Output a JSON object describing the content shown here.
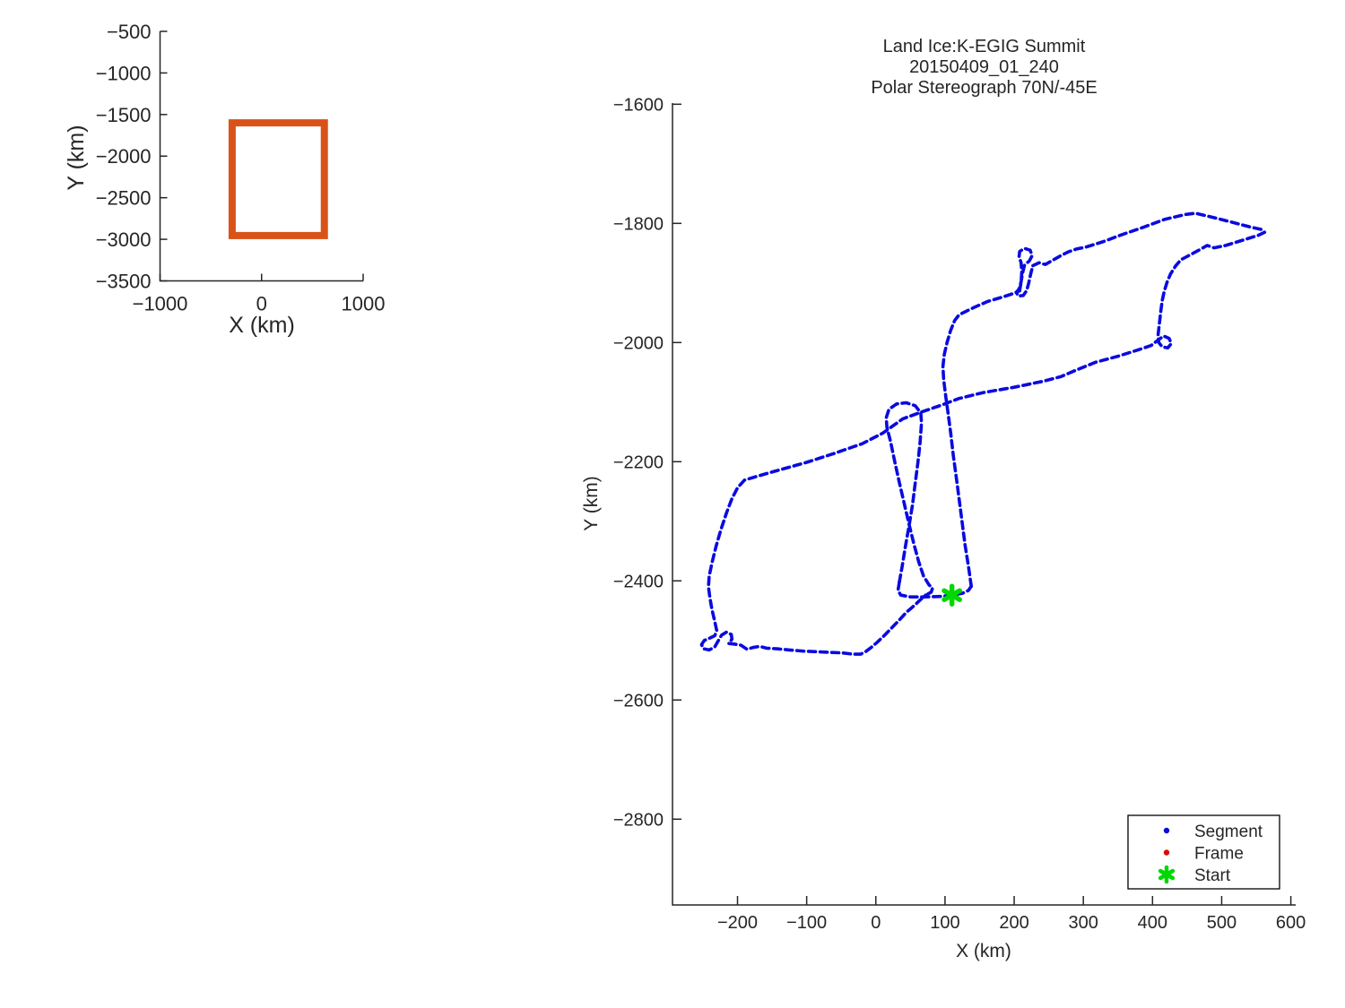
{
  "figure": {
    "background": "#ffffff"
  },
  "colors": {
    "track_blue": "#0a0ae0",
    "frame_red": "#e80000",
    "start_green": "#00d800",
    "coverage_orange": "#d95319",
    "axis": "#262626",
    "text": "#262626"
  },
  "legend": {
    "items": [
      {
        "label": "Segment",
        "marker": "dot",
        "color": "#0a0ae0"
      },
      {
        "label": "Frame",
        "marker": "dot",
        "color": "#e80000"
      },
      {
        "label": "Start",
        "marker": "asterisk",
        "color": "#00d800"
      }
    ]
  },
  "chart_data": [
    {
      "id": "inset_plot",
      "type": "line",
      "title": "",
      "xlabel": "X (km)",
      "ylabel": "Y (km)",
      "xlim": [
        -1000,
        1000
      ],
      "ylim": [
        -3500,
        -500
      ],
      "x_ticks": [
        -1000,
        0,
        1000
      ],
      "y_ticks": [
        -500,
        -1000,
        -1500,
        -2000,
        -2500,
        -3000,
        -3500
      ],
      "grid": false,
      "coverage_box": {
        "x": [
          -290,
          618
        ],
        "y": [
          -2955,
          -1600
        ]
      }
    },
    {
      "id": "main_plot",
      "type": "line",
      "title_lines": [
        "Land Ice:K-EGIG Summit",
        "20150409_01_240",
        "Polar Stereograph 70N/-45E"
      ],
      "xlabel": "X (km)",
      "ylabel": "Y (km)",
      "xlim": [
        -294,
        607
      ],
      "ylim": [
        -2944,
        -1598
      ],
      "x_ticks": [
        -200,
        -100,
        0,
        100,
        200,
        300,
        400,
        500,
        600
      ],
      "y_ticks": [
        -1600,
        -1800,
        -2000,
        -2200,
        -2400,
        -2600,
        -2800
      ],
      "grid": false,
      "legend_position": "lower-right",
      "start_point": [
        110,
        -2424
      ],
      "track_strands": [
        [
          [
            34,
            -2402
          ],
          [
            32,
            -2416
          ],
          [
            36,
            -2424
          ],
          [
            50,
            -2427
          ],
          [
            72,
            -2427
          ],
          [
            95,
            -2426
          ],
          [
            110,
            -2424
          ],
          [
            125,
            -2421
          ],
          [
            134,
            -2416
          ],
          [
            138,
            -2409
          ]
        ],
        [
          [
            34,
            -2402
          ],
          [
            38,
            -2376
          ],
          [
            43,
            -2340
          ],
          [
            48,
            -2308
          ],
          [
            53,
            -2272
          ],
          [
            57,
            -2236
          ],
          [
            61,
            -2200
          ],
          [
            64,
            -2168
          ],
          [
            66,
            -2135
          ],
          [
            65,
            -2118
          ],
          [
            57,
            -2106
          ],
          [
            44,
            -2101
          ],
          [
            30,
            -2103
          ],
          [
            19,
            -2112
          ],
          [
            15,
            -2126
          ],
          [
            16,
            -2142
          ],
          [
            21,
            -2165
          ],
          [
            27,
            -2198
          ],
          [
            34,
            -2235
          ],
          [
            41,
            -2270
          ],
          [
            48,
            -2305
          ],
          [
            55,
            -2338
          ],
          [
            62,
            -2368
          ],
          [
            69,
            -2392
          ],
          [
            77,
            -2407
          ],
          [
            82,
            -2412
          ],
          [
            80,
            -2419
          ],
          [
            72,
            -2424
          ]
        ],
        [
          [
            138,
            -2409
          ],
          [
            134,
            -2376
          ],
          [
            129,
            -2340
          ],
          [
            125,
            -2304
          ],
          [
            121,
            -2268
          ],
          [
            117,
            -2232
          ],
          [
            112,
            -2190
          ],
          [
            108,
            -2150
          ],
          [
            104,
            -2115
          ],
          [
            101,
            -2090
          ],
          [
            98,
            -2062
          ],
          [
            97,
            -2040
          ],
          [
            99,
            -2020
          ],
          [
            103,
            -2000
          ],
          [
            108,
            -1980
          ],
          [
            114,
            -1963
          ],
          [
            120,
            -1954
          ],
          [
            126,
            -1950
          ],
          [
            142,
            -1941
          ],
          [
            162,
            -1931
          ],
          [
            182,
            -1924
          ],
          [
            198,
            -1918
          ],
          [
            208,
            -1913
          ]
        ],
        [
          [
            208,
            -1913
          ],
          [
            210,
            -1898
          ],
          [
            211,
            -1882
          ],
          [
            210,
            -1866
          ],
          [
            207,
            -1856
          ],
          [
            208,
            -1847
          ],
          [
            215,
            -1842
          ],
          [
            223,
            -1845
          ],
          [
            226,
            -1854
          ],
          [
            222,
            -1863
          ],
          [
            215,
            -1870
          ],
          [
            212,
            -1884
          ],
          [
            210,
            -1898
          ],
          [
            207,
            -1910
          ],
          [
            203,
            -1916
          ],
          [
            206,
            -1922
          ],
          [
            213,
            -1921
          ],
          [
            218,
            -1913
          ],
          [
            221,
            -1900
          ],
          [
            224,
            -1884
          ],
          [
            227,
            -1871
          ]
        ],
        [
          [
            227,
            -1871
          ],
          [
            236,
            -1866
          ],
          [
            245,
            -1869
          ],
          [
            254,
            -1863
          ],
          [
            266,
            -1855
          ],
          [
            278,
            -1848
          ],
          [
            290,
            -1843
          ],
          [
            303,
            -1840
          ],
          [
            328,
            -1831
          ],
          [
            358,
            -1818
          ],
          [
            388,
            -1806
          ],
          [
            418,
            -1793
          ],
          [
            448,
            -1785
          ],
          [
            462,
            -1783
          ],
          [
            488,
            -1790
          ],
          [
            515,
            -1798
          ],
          [
            541,
            -1806
          ],
          [
            557,
            -1810
          ],
          [
            562,
            -1815
          ],
          [
            553,
            -1820
          ],
          [
            531,
            -1828
          ],
          [
            506,
            -1837
          ],
          [
            489,
            -1841
          ],
          [
            479,
            -1837
          ],
          [
            467,
            -1845
          ],
          [
            454,
            -1853
          ],
          [
            441,
            -1861
          ],
          [
            433,
            -1872
          ],
          [
            426,
            -1885
          ],
          [
            421,
            -1899
          ],
          [
            417,
            -1914
          ],
          [
            414,
            -1930
          ],
          [
            412,
            -1947
          ],
          [
            410,
            -1968
          ],
          [
            408,
            -1988
          ],
          [
            409,
            -2000
          ],
          [
            414,
            -2007
          ],
          [
            422,
            -2009
          ],
          [
            427,
            -2002
          ],
          [
            424,
            -1993
          ],
          [
            416,
            -1989
          ],
          [
            408,
            -1996
          ],
          [
            398,
            -2005
          ],
          [
            380,
            -2012
          ],
          [
            350,
            -2023
          ],
          [
            318,
            -2033
          ],
          [
            290,
            -2046
          ],
          [
            268,
            -2057
          ],
          [
            242,
            -2065
          ],
          [
            200,
            -2075
          ],
          [
            155,
            -2084
          ],
          [
            120,
            -2094
          ],
          [
            95,
            -2105
          ],
          [
            65,
            -2117
          ],
          [
            39,
            -2128
          ],
          [
            10,
            -2152
          ],
          [
            -20,
            -2170
          ],
          [
            -60,
            -2186
          ],
          [
            -100,
            -2201
          ],
          [
            -140,
            -2214
          ],
          [
            -170,
            -2224
          ],
          [
            -190,
            -2231
          ],
          [
            -200,
            -2244
          ],
          [
            -208,
            -2262
          ],
          [
            -216,
            -2286
          ],
          [
            -224,
            -2314
          ],
          [
            -231,
            -2342
          ],
          [
            -237,
            -2370
          ],
          [
            -241,
            -2392
          ],
          [
            -242,
            -2410
          ],
          [
            -240,
            -2428
          ],
          [
            -237,
            -2448
          ],
          [
            -233,
            -2468
          ],
          [
            -230,
            -2484
          ],
          [
            -233,
            -2492
          ],
          [
            -240,
            -2496
          ],
          [
            -248,
            -2500
          ],
          [
            -252,
            -2507
          ],
          [
            -249,
            -2514
          ],
          [
            -241,
            -2516
          ],
          [
            -233,
            -2511
          ],
          [
            -228,
            -2501
          ],
          [
            -223,
            -2491
          ],
          [
            -216,
            -2486
          ],
          [
            -209,
            -2490
          ],
          [
            -208,
            -2498
          ],
          [
            -213,
            -2505
          ],
          [
            -205,
            -2506
          ],
          [
            -195,
            -2508
          ],
          [
            -186,
            -2515
          ],
          [
            -178,
            -2512
          ],
          [
            -168,
            -2510
          ],
          [
            -158,
            -2513
          ],
          [
            -143,
            -2514
          ],
          [
            -125,
            -2516
          ],
          [
            -105,
            -2518
          ],
          [
            -85,
            -2519
          ],
          [
            -65,
            -2520
          ],
          [
            -48,
            -2521
          ],
          [
            -33,
            -2523
          ],
          [
            -22,
            -2523
          ],
          [
            -15,
            -2519
          ],
          [
            -6,
            -2511
          ],
          [
            2,
            -2503
          ],
          [
            12,
            -2492
          ],
          [
            22,
            -2480
          ],
          [
            33,
            -2467
          ],
          [
            44,
            -2453
          ],
          [
            56,
            -2441
          ],
          [
            66,
            -2430
          ],
          [
            72,
            -2424
          ]
        ]
      ]
    }
  ]
}
